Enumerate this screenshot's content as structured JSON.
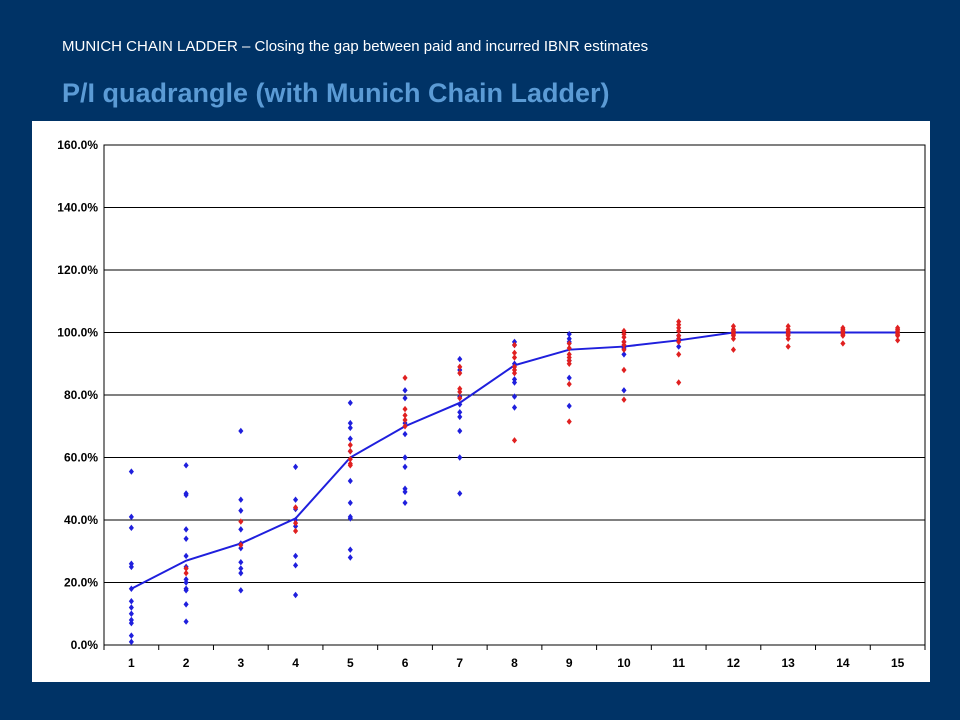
{
  "header": {
    "subtitle": "MUNICH CHAIN LADDER – Closing the gap between paid and incurred IBNR estimates",
    "title": "P/I quadrangle (with Munich Chain Ladder)"
  },
  "colors": {
    "background": "#003366",
    "title": "#5b9bd5",
    "observed": "#1f1fdd",
    "projected": "#e02020",
    "line": "#1f1fdd"
  },
  "chart_data": {
    "type": "scatter",
    "x": [
      1,
      2,
      3,
      4,
      5,
      6,
      7,
      8,
      9,
      10,
      11,
      12,
      13,
      14,
      15
    ],
    "x_tick_labels": [
      "1",
      "2",
      "3",
      "4",
      "5",
      "6",
      "7",
      "8",
      "9",
      "10",
      "11",
      "12",
      "13",
      "14",
      "15"
    ],
    "y_tick_labels": [
      "0.0%",
      "20.0%",
      "40.0%",
      "60.0%",
      "80.0%",
      "100.0%",
      "120.0%",
      "140.0%",
      "160.0%"
    ],
    "ylim": [
      0,
      160
    ],
    "grid": "horizontal",
    "series": [
      {
        "marker": "diamond",
        "color": "#1f1fdd",
        "points": [
          [
            1,
            55.5
          ],
          [
            1,
            41
          ],
          [
            1,
            37.5
          ],
          [
            1,
            26
          ],
          [
            1,
            25
          ],
          [
            1,
            18
          ],
          [
            1,
            14
          ],
          [
            1,
            12
          ],
          [
            1,
            10
          ],
          [
            1,
            8
          ],
          [
            1,
            7
          ],
          [
            1,
            3
          ],
          [
            1,
            1
          ],
          [
            2,
            57.5
          ],
          [
            2,
            48.5
          ],
          [
            2,
            48
          ],
          [
            2,
            37
          ],
          [
            2,
            34
          ],
          [
            2,
            28.5
          ],
          [
            2,
            25
          ],
          [
            2,
            21
          ],
          [
            2,
            20
          ],
          [
            2,
            18
          ],
          [
            2,
            17.5
          ],
          [
            2,
            13
          ],
          [
            2,
            7.5
          ],
          [
            3,
            68.5
          ],
          [
            3,
            46.5
          ],
          [
            3,
            43
          ],
          [
            3,
            37
          ],
          [
            3,
            32.5
          ],
          [
            3,
            31
          ],
          [
            3,
            26.5
          ],
          [
            3,
            24.5
          ],
          [
            3,
            23
          ],
          [
            3,
            17.5
          ],
          [
            4,
            57
          ],
          [
            4,
            46.5
          ],
          [
            4,
            43.5
          ],
          [
            4,
            40
          ],
          [
            4,
            38
          ],
          [
            4,
            28.5
          ],
          [
            4,
            25.5
          ],
          [
            4,
            16
          ],
          [
            5,
            77.5
          ],
          [
            5,
            71
          ],
          [
            5,
            69.5
          ],
          [
            5,
            66
          ],
          [
            5,
            62
          ],
          [
            5,
            52.5
          ],
          [
            5,
            45.5
          ],
          [
            5,
            41
          ],
          [
            5,
            40.5
          ],
          [
            5,
            30.5
          ],
          [
            5,
            28
          ],
          [
            6,
            81.5
          ],
          [
            6,
            79
          ],
          [
            6,
            71
          ],
          [
            6,
            67.5
          ],
          [
            6,
            60
          ],
          [
            6,
            57
          ],
          [
            6,
            50
          ],
          [
            6,
            49
          ],
          [
            6,
            45.5
          ],
          [
            7,
            91.5
          ],
          [
            7,
            88
          ],
          [
            7,
            79.5
          ],
          [
            7,
            77
          ],
          [
            7,
            74.5
          ],
          [
            7,
            73
          ],
          [
            7,
            68.5
          ],
          [
            7,
            60
          ],
          [
            7,
            48.5
          ],
          [
            8,
            97
          ],
          [
            8,
            96
          ],
          [
            8,
            90
          ],
          [
            8,
            85
          ],
          [
            8,
            84
          ],
          [
            8,
            79.5
          ],
          [
            8,
            76
          ],
          [
            9,
            99.5
          ],
          [
            9,
            98
          ],
          [
            9,
            97
          ],
          [
            9,
            91
          ],
          [
            9,
            85.5
          ],
          [
            9,
            76.5
          ],
          [
            10,
            97
          ],
          [
            10,
            95
          ],
          [
            10,
            93
          ],
          [
            10,
            81.5
          ],
          [
            11,
            99
          ],
          [
            11,
            98
          ],
          [
            11,
            95.5
          ]
        ]
      },
      {
        "marker": "diamond",
        "color": "#e02020",
        "points": [
          [
            2,
            24.5
          ],
          [
            2,
            23
          ],
          [
            3,
            39.5
          ],
          [
            3,
            32
          ],
          [
            4,
            44
          ],
          [
            4,
            39
          ],
          [
            4,
            36.5
          ],
          [
            5,
            64
          ],
          [
            5,
            62
          ],
          [
            5,
            59.5
          ],
          [
            5,
            58
          ],
          [
            5,
            57.5
          ],
          [
            6,
            85.5
          ],
          [
            6,
            75.5
          ],
          [
            6,
            73.5
          ],
          [
            6,
            72
          ],
          [
            6,
            70
          ],
          [
            7,
            89
          ],
          [
            7,
            87
          ],
          [
            7,
            82
          ],
          [
            7,
            81
          ],
          [
            7,
            79
          ],
          [
            8,
            96
          ],
          [
            8,
            93.5
          ],
          [
            8,
            92
          ],
          [
            8,
            89
          ],
          [
            8,
            88
          ],
          [
            8,
            87
          ],
          [
            8,
            65.5
          ],
          [
            9,
            96.5
          ],
          [
            9,
            95
          ],
          [
            9,
            93
          ],
          [
            9,
            92
          ],
          [
            9,
            91
          ],
          [
            9,
            90
          ],
          [
            9,
            83.5
          ],
          [
            9,
            71.5
          ],
          [
            10,
            100.5
          ],
          [
            10,
            99.5
          ],
          [
            10,
            98.5
          ],
          [
            10,
            97
          ],
          [
            10,
            96
          ],
          [
            10,
            94.5
          ],
          [
            10,
            88
          ],
          [
            10,
            78.5
          ],
          [
            11,
            103.5
          ],
          [
            11,
            102.5
          ],
          [
            11,
            101.5
          ],
          [
            11,
            100.5
          ],
          [
            11,
            99
          ],
          [
            11,
            98
          ],
          [
            11,
            97
          ],
          [
            11,
            93
          ],
          [
            11,
            84
          ],
          [
            12,
            102
          ],
          [
            12,
            101
          ],
          [
            12,
            100.5
          ],
          [
            12,
            100
          ],
          [
            12,
            99.5
          ],
          [
            12,
            99
          ],
          [
            12,
            98
          ],
          [
            12,
            94.5
          ],
          [
            13,
            102
          ],
          [
            13,
            101
          ],
          [
            13,
            100.5
          ],
          [
            13,
            100
          ],
          [
            13,
            99.5
          ],
          [
            13,
            99
          ],
          [
            13,
            98
          ],
          [
            13,
            95.5
          ],
          [
            14,
            101.5
          ],
          [
            14,
            101
          ],
          [
            14,
            100.5
          ],
          [
            14,
            100
          ],
          [
            14,
            99.5
          ],
          [
            14,
            99
          ],
          [
            14,
            96.5
          ],
          [
            15,
            101.5
          ],
          [
            15,
            101
          ],
          [
            15,
            100.5
          ],
          [
            15,
            100
          ],
          [
            15,
            99.5
          ],
          [
            15,
            99
          ],
          [
            15,
            97.5
          ]
        ]
      },
      {
        "type": "line",
        "color": "#1f1fdd",
        "values": [
          18,
          27,
          32.5,
          40.5,
          60,
          70,
          77.5,
          89.5,
          94.5,
          95.5,
          97.5,
          100,
          100,
          100,
          100
        ]
      }
    ]
  }
}
